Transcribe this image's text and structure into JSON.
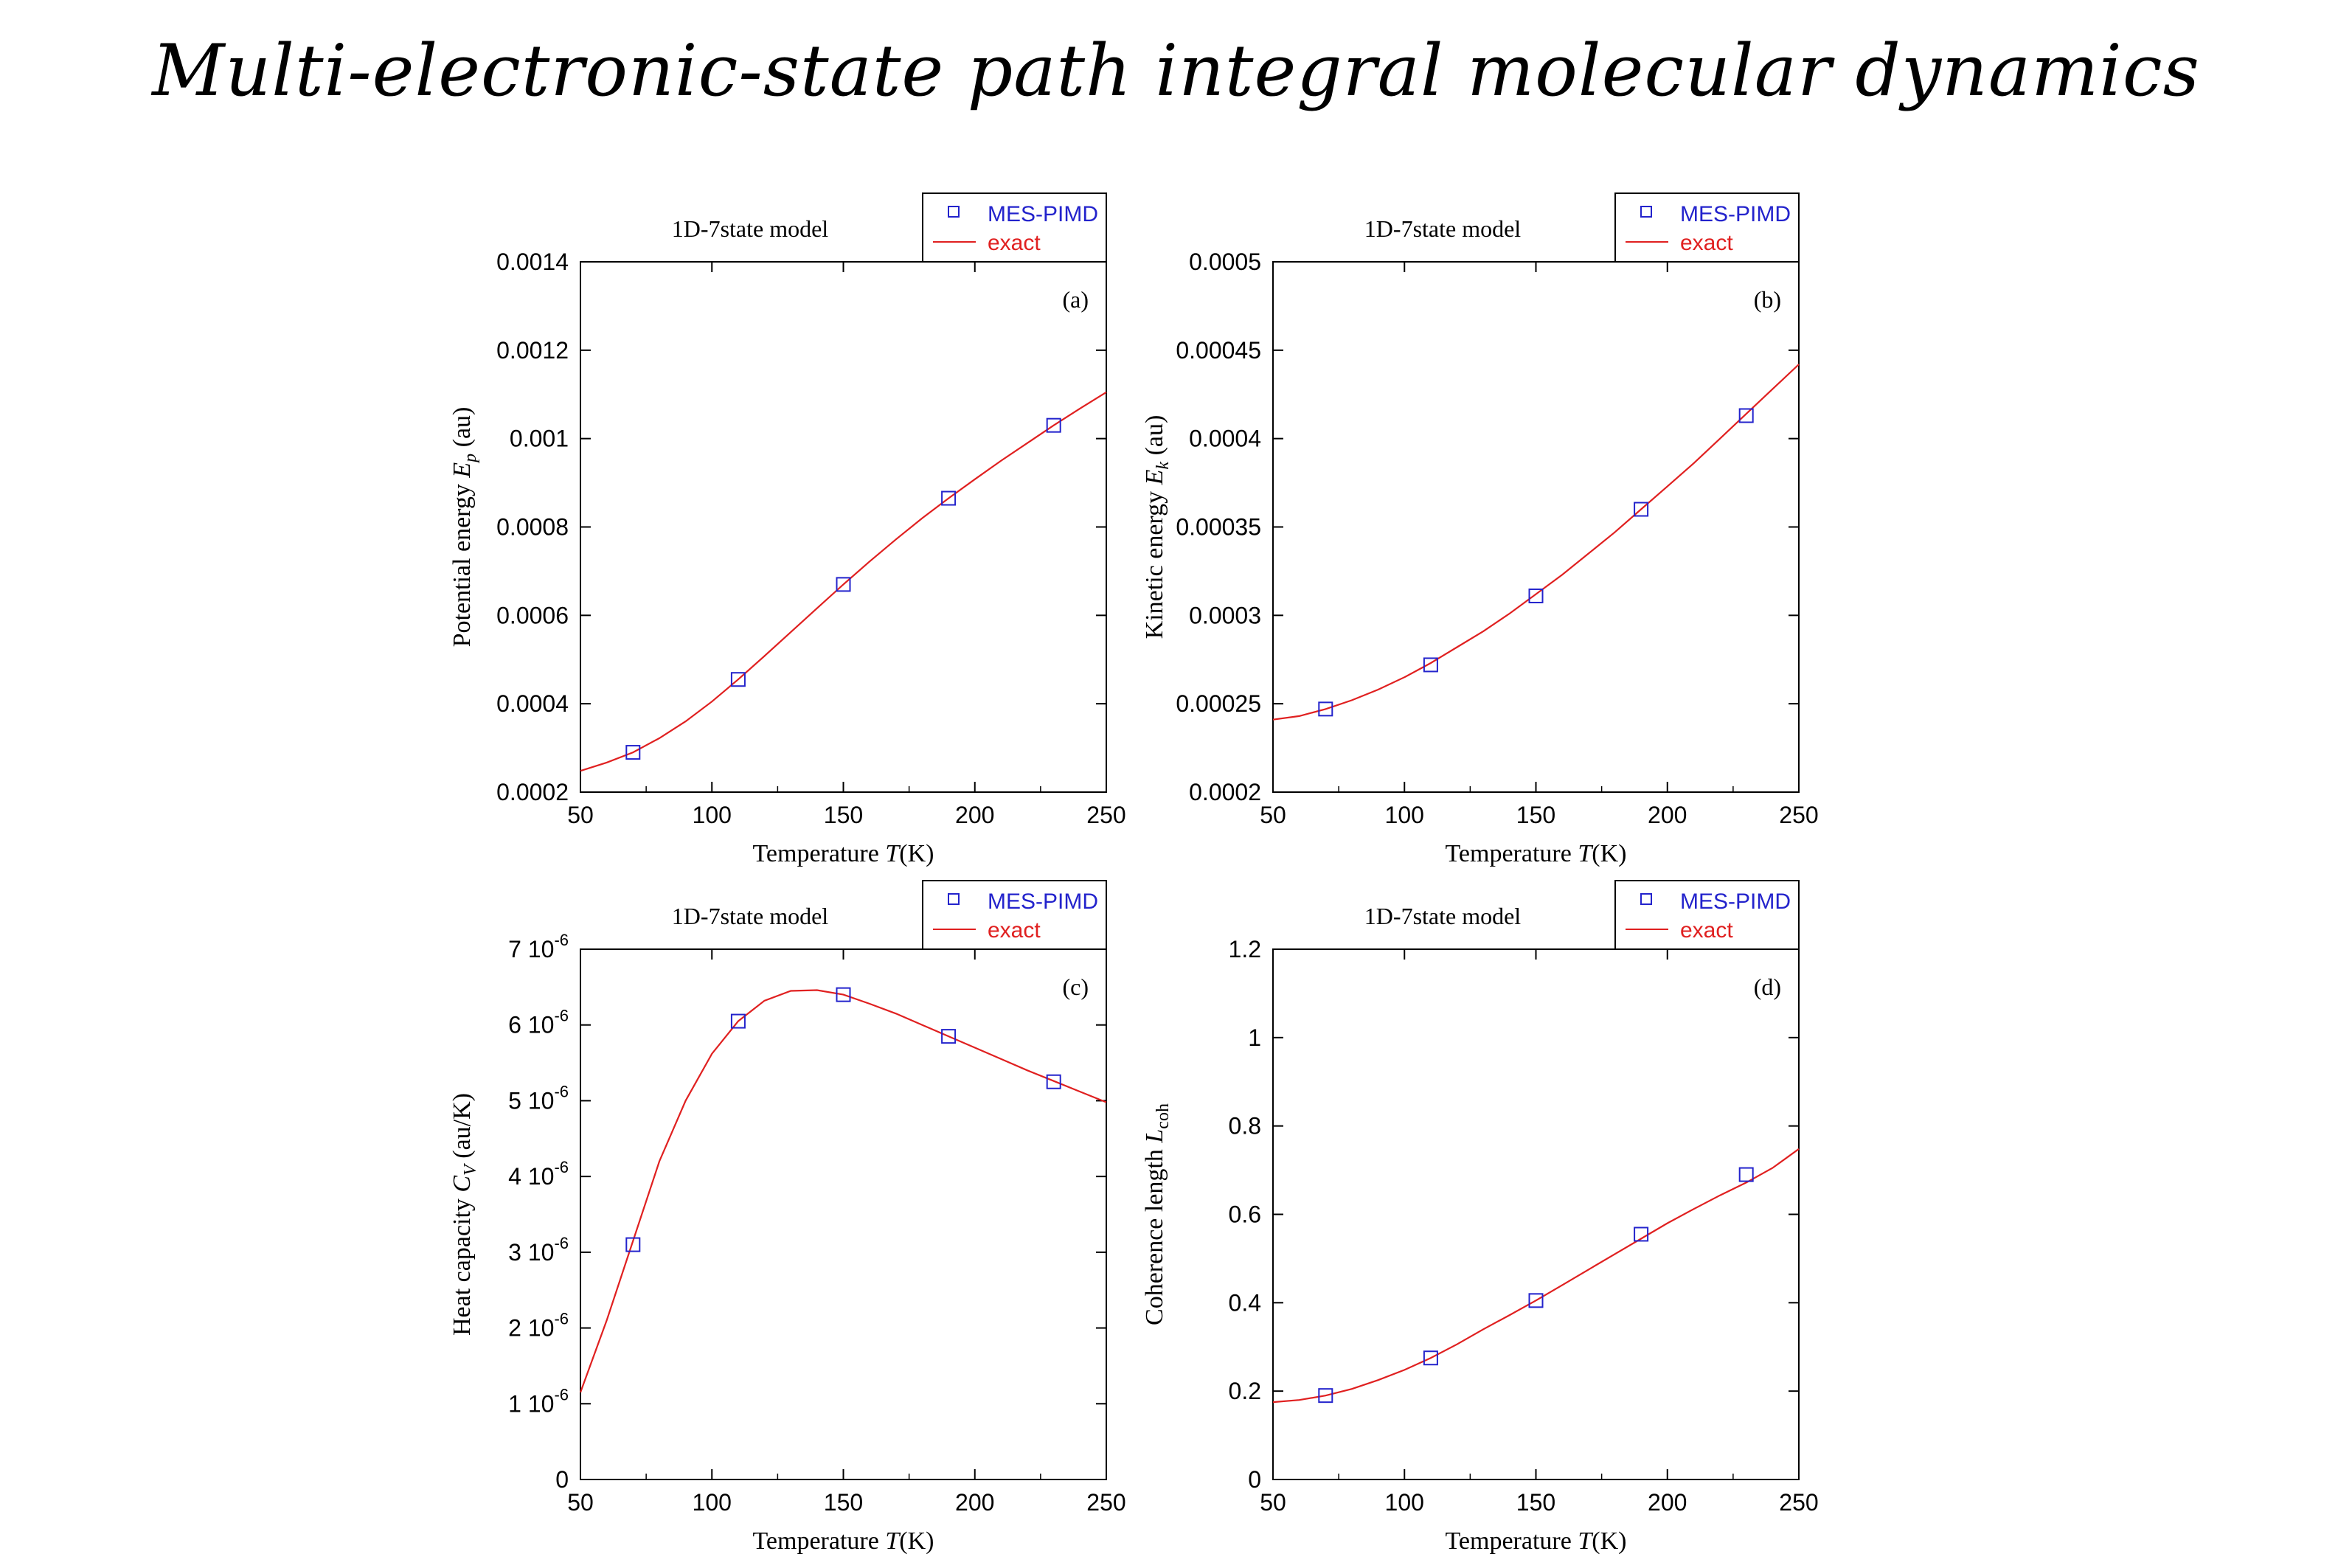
{
  "page": {
    "title": "Multi-electronic-state path integral molecular dynamics"
  },
  "colors": {
    "mes": "#2323cc",
    "exact": "#e02020",
    "axis": "#000000"
  },
  "legend": {
    "markerGlyph": "□",
    "lineGlyph": "—"
  },
  "chart_data": [
    {
      "id": "a",
      "type": "line",
      "title": "1D-7state model",
      "panel_label": "(a)",
      "xlabel": "Temperature T(K)",
      "ylabel": "Potential energy E_p (au)",
      "xlim": [
        50,
        250
      ],
      "ylim": [
        0.0002,
        0.0014
      ],
      "xticks": [
        50,
        100,
        150,
        200,
        250
      ],
      "xtick_labels": [
        "50",
        "100",
        "150",
        "200",
        "250"
      ],
      "yticks": [
        0.0002,
        0.0004,
        0.0006,
        0.0008,
        0.001,
        0.0012,
        0.0014
      ],
      "ytick_labels": [
        "0.0002",
        "0.0004",
        "0.0006",
        "0.0008",
        "0.001",
        "0.0012",
        "0.0014"
      ],
      "series": [
        {
          "name": "MES-PIMD",
          "kind": "markers",
          "x": [
            70,
            110,
            150,
            190,
            230
          ],
          "y": [
            0.00029,
            0.000455,
            0.00067,
            0.000865,
            0.00103
          ]
        },
        {
          "name": "exact",
          "kind": "line",
          "x": [
            50,
            60,
            70,
            80,
            90,
            100,
            110,
            120,
            130,
            140,
            150,
            160,
            170,
            180,
            190,
            200,
            210,
            220,
            230,
            240,
            250
          ],
          "y": [
            0.000248,
            0.000267,
            0.00029,
            0.000322,
            0.00036,
            0.000405,
            0.000455,
            0.000508,
            0.000562,
            0.000616,
            0.00067,
            0.000722,
            0.000772,
            0.00082,
            0.000865,
            0.000908,
            0.00095,
            0.00099,
            0.00103,
            0.001068,
            0.001105
          ]
        }
      ]
    },
    {
      "id": "b",
      "type": "line",
      "title": "1D-7state model",
      "panel_label": "(b)",
      "xlabel": "Temperature T(K)",
      "ylabel": "Kinetic energy E_k (au)",
      "xlim": [
        50,
        250
      ],
      "ylim": [
        0.0002,
        0.0005
      ],
      "xticks": [
        50,
        100,
        150,
        200,
        250
      ],
      "xtick_labels": [
        "50",
        "100",
        "150",
        "200",
        "250"
      ],
      "yticks": [
        0.0002,
        0.00025,
        0.0003,
        0.00035,
        0.0004,
        0.00045,
        0.0005
      ],
      "ytick_labels": [
        "0.0002",
        "0.00025",
        "0.0003",
        "0.00035",
        "0.0004",
        "0.00045",
        "0.0005"
      ],
      "series": [
        {
          "name": "MES-PIMD",
          "kind": "markers",
          "x": [
            70,
            110,
            150,
            190,
            230
          ],
          "y": [
            0.000247,
            0.000272,
            0.000311,
            0.00036,
            0.000413
          ]
        },
        {
          "name": "exact",
          "kind": "line",
          "x": [
            50,
            60,
            70,
            80,
            90,
            100,
            110,
            120,
            130,
            140,
            150,
            160,
            170,
            180,
            190,
            200,
            210,
            220,
            230,
            240,
            250
          ],
          "y": [
            0.000241,
            0.000243,
            0.000247,
            0.000252,
            0.000258,
            0.000265,
            0.000273,
            0.000282,
            0.000291,
            0.000301,
            0.000312,
            0.000323,
            0.000335,
            0.000347,
            0.00036,
            0.000373,
            0.000386,
            0.0004,
            0.000414,
            0.000428,
            0.000442
          ]
        }
      ]
    },
    {
      "id": "c",
      "type": "line",
      "title": "1D-7state model",
      "panel_label": "(c)",
      "xlabel": "Temperature T(K)",
      "ylabel": "Heat capacity C_V (au/K)",
      "xlim": [
        50,
        250
      ],
      "ylim": [
        0,
        7e-06
      ],
      "xticks": [
        50,
        100,
        150,
        200,
        250
      ],
      "xtick_labels": [
        "50",
        "100",
        "150",
        "200",
        "250"
      ],
      "yticks": [
        0,
        1e-06,
        2e-06,
        3e-06,
        4e-06,
        5e-06,
        6e-06,
        7e-06
      ],
      "ytick_labels": [
        "0",
        "1 10",
        "2 10",
        "3 10",
        "4 10",
        "5 10",
        "6 10",
        "7 10"
      ],
      "ytick_exponents": [
        "",
        "-6",
        "-6",
        "-6",
        "-6",
        "-6",
        "-6",
        "-6"
      ],
      "series": [
        {
          "name": "MES-PIMD",
          "kind": "markers",
          "x": [
            70,
            110,
            150,
            190,
            230
          ],
          "y": [
            3.1e-06,
            6.05e-06,
            6.4e-06,
            5.85e-06,
            5.25e-06
          ]
        },
        {
          "name": "exact",
          "kind": "line",
          "x": [
            50,
            60,
            70,
            80,
            90,
            100,
            110,
            120,
            130,
            140,
            150,
            160,
            170,
            180,
            190,
            200,
            210,
            220,
            230,
            240,
            250
          ],
          "y": [
            1.15e-06,
            2.1e-06,
            3.15e-06,
            4.2e-06,
            5e-06,
            5.62e-06,
            6.05e-06,
            6.32e-06,
            6.45e-06,
            6.46e-06,
            6.4e-06,
            6.28e-06,
            6.15e-06,
            6e-06,
            5.85e-06,
            5.7e-06,
            5.55e-06,
            5.4e-06,
            5.26e-06,
            5.12e-06,
            4.98e-06
          ]
        }
      ]
    },
    {
      "id": "d",
      "type": "line",
      "title": "1D-7state model",
      "panel_label": "(d)",
      "xlabel": "Temperature T(K)",
      "ylabel": "Coherence length L_coh",
      "xlim": [
        50,
        250
      ],
      "ylim": [
        0,
        1.2
      ],
      "xticks": [
        50,
        100,
        150,
        200,
        250
      ],
      "xtick_labels": [
        "50",
        "100",
        "150",
        "200",
        "250"
      ],
      "yticks": [
        0,
        0.2,
        0.4,
        0.6,
        0.8,
        1,
        1.2
      ],
      "ytick_labels": [
        "0",
        "0.2",
        "0.4",
        "0.6",
        "0.8",
        "1",
        "1.2"
      ],
      "series": [
        {
          "name": "MES-PIMD",
          "kind": "markers",
          "x": [
            70,
            110,
            150,
            190,
            230
          ],
          "y": [
            0.19,
            0.275,
            0.405,
            0.555,
            0.69
          ]
        },
        {
          "name": "exact",
          "kind": "line",
          "x": [
            50,
            60,
            70,
            80,
            90,
            100,
            110,
            120,
            130,
            140,
            150,
            160,
            170,
            180,
            190,
            200,
            210,
            220,
            230,
            240,
            250
          ],
          "y": [
            0.175,
            0.18,
            0.19,
            0.205,
            0.225,
            0.248,
            0.275,
            0.306,
            0.34,
            0.372,
            0.405,
            0.44,
            0.475,
            0.51,
            0.545,
            0.58,
            0.612,
            0.643,
            0.672,
            0.705,
            0.748
          ]
        }
      ]
    }
  ]
}
